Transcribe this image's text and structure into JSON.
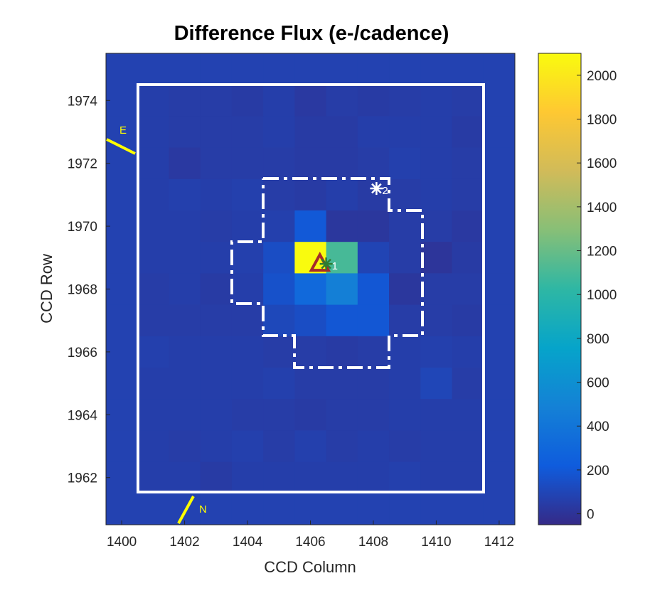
{
  "chart_data": {
    "type": "heatmap",
    "title": "Difference Flux (e-/cadence)",
    "xlabel": "CCD Column",
    "ylabel": "CCD Row",
    "xlim": [
      1399.5,
      1412.5
    ],
    "ylim": [
      1960.5,
      1975.5
    ],
    "x_ticks": [
      "1400",
      "1402",
      "1404",
      "1406",
      "1408",
      "1410",
      "1412"
    ],
    "y_ticks": [
      "1962",
      "1964",
      "1966",
      "1968",
      "1970",
      "1972",
      "1974"
    ],
    "colorbar": {
      "min": -50,
      "max": 2100,
      "ticks": [
        "0",
        "200",
        "400",
        "600",
        "800",
        "1000",
        "1200",
        "1400",
        "1600",
        "1800",
        "2000"
      ],
      "colormap": "parula"
    },
    "columns": [
      1400,
      1401,
      1402,
      1403,
      1404,
      1405,
      1406,
      1407,
      1408,
      1409,
      1410,
      1411,
      1412
    ],
    "rows": [
      1975,
      1974,
      1973,
      1972,
      1971,
      1970,
      1969,
      1968,
      1967,
      1966,
      1965,
      1964,
      1963,
      1962,
      1961
    ],
    "values": [
      [
        80,
        80,
        80,
        80,
        80,
        80,
        80,
        80,
        80,
        80,
        80,
        80,
        80
      ],
      [
        80,
        60,
        50,
        50,
        40,
        60,
        30,
        50,
        40,
        50,
        60,
        50,
        80
      ],
      [
        80,
        60,
        50,
        50,
        50,
        60,
        40,
        40,
        60,
        60,
        60,
        40,
        80
      ],
      [
        80,
        60,
        30,
        50,
        50,
        50,
        40,
        40,
        50,
        70,
        60,
        50,
        80
      ],
      [
        80,
        60,
        70,
        60,
        70,
        50,
        40,
        60,
        40,
        50,
        60,
        50,
        80
      ],
      [
        80,
        60,
        60,
        50,
        60,
        70,
        200,
        20,
        20,
        50,
        50,
        30,
        80
      ],
      [
        80,
        60,
        60,
        60,
        70,
        140,
        2100,
        1100,
        90,
        50,
        10,
        40,
        80
      ],
      [
        80,
        50,
        60,
        40,
        60,
        160,
        310,
        470,
        190,
        20,
        50,
        50,
        80
      ],
      [
        80,
        50,
        50,
        50,
        50,
        110,
        140,
        190,
        190,
        50,
        50,
        40,
        80
      ],
      [
        80,
        70,
        60,
        60,
        60,
        50,
        50,
        40,
        50,
        60,
        70,
        60,
        80
      ],
      [
        80,
        60,
        60,
        60,
        60,
        70,
        50,
        50,
        50,
        60,
        100,
        50,
        80
      ],
      [
        80,
        60,
        60,
        60,
        50,
        50,
        40,
        50,
        50,
        60,
        60,
        60,
        80
      ],
      [
        80,
        60,
        50,
        60,
        70,
        50,
        70,
        50,
        60,
        50,
        60,
        60,
        80
      ],
      [
        80,
        60,
        60,
        40,
        60,
        60,
        60,
        60,
        60,
        70,
        60,
        60,
        80
      ],
      [
        80,
        80,
        80,
        80,
        80,
        80,
        80,
        80,
        80,
        80,
        80,
        80,
        80
      ]
    ],
    "stars": [
      {
        "label": "1",
        "x": 1406.5,
        "y": 1968.8,
        "color": "#2e7d32"
      },
      {
        "label": "2",
        "x": 1408.1,
        "y": 1971.2,
        "color": "#ffffff"
      }
    ],
    "centroid": {
      "x": 1406.3,
      "y": 1968.8,
      "color": "#a52a2a"
    },
    "compass": {
      "east": "E",
      "north": "N",
      "color": "#ffff00"
    },
    "grid": false
  }
}
